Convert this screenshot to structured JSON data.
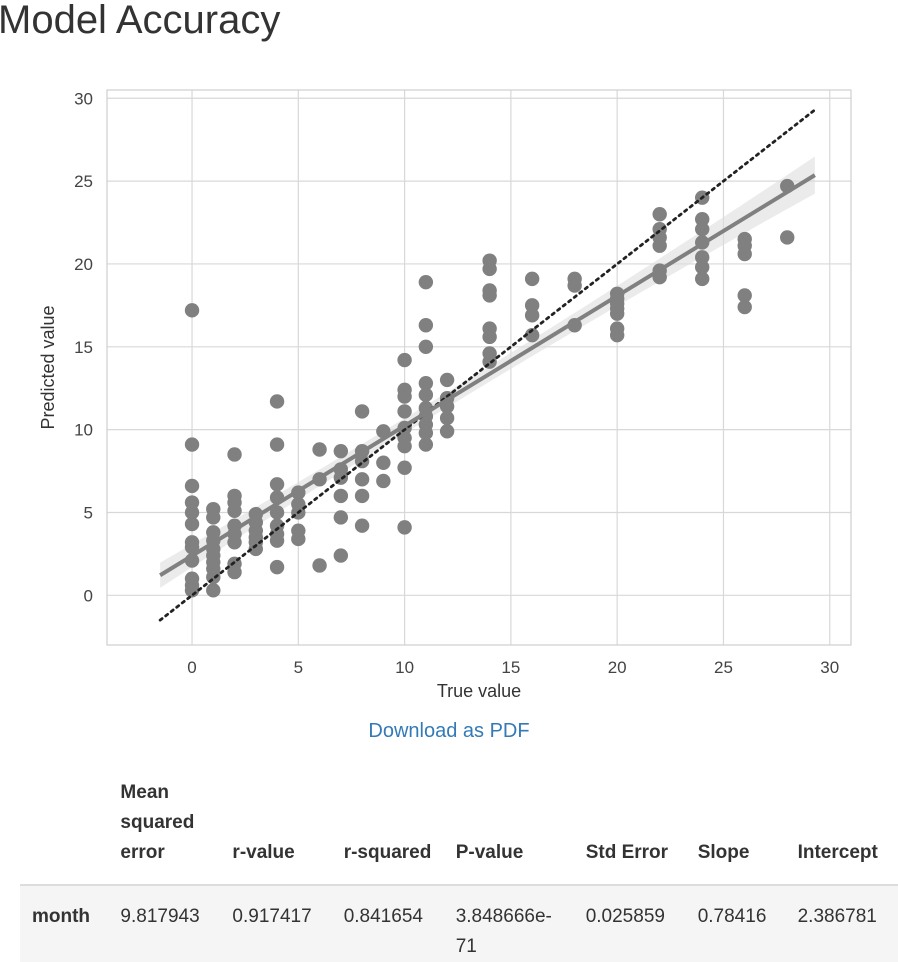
{
  "page": {
    "title": "Model Accuracy",
    "download_label": "Download as PDF"
  },
  "table": {
    "headers": [
      "",
      "Mean squared error",
      "r-value",
      "r-squared",
      "P-value",
      "Std Error",
      "Slope",
      "Intercept"
    ],
    "rows": [
      {
        "label": "month",
        "values": [
          "9.817943",
          "0.917417",
          "0.841654",
          "3.848666e-71",
          "0.025859",
          "0.78416",
          "2.386781"
        ]
      }
    ]
  },
  "colors": {
    "point": "#808080",
    "regression_line": "#808080",
    "identity_line": "#222222",
    "grid": "#d8d8d8",
    "link": "#337ab7"
  },
  "chart_data": {
    "type": "scatter",
    "title": "",
    "xlabel": "True value",
    "ylabel": "Predicted value",
    "xlim": [
      -4,
      31
    ],
    "ylim": [
      -3,
      30.5
    ],
    "xticks": [
      0,
      5,
      10,
      15,
      20,
      25,
      30
    ],
    "yticks": [
      0,
      5,
      10,
      15,
      20,
      25,
      30
    ],
    "grid": true,
    "regression": {
      "slope": 0.78416,
      "intercept": 2.386781,
      "x_range": [
        -1.5,
        29.3
      ],
      "ci_band": true
    },
    "identity_line": {
      "x_range": [
        -1.5,
        29.3
      ],
      "style": "dotted"
    },
    "points": [
      [
        0,
        17.2
      ],
      [
        0,
        9.1
      ],
      [
        0,
        6.6
      ],
      [
        0,
        5.6
      ],
      [
        0,
        5.0
      ],
      [
        0,
        4.3
      ],
      [
        0,
        3.2
      ],
      [
        0,
        2.9
      ],
      [
        0,
        2.1
      ],
      [
        0,
        1.0
      ],
      [
        0,
        0.6
      ],
      [
        0,
        0.3
      ],
      [
        1,
        5.2
      ],
      [
        1,
        4.7
      ],
      [
        1,
        3.8
      ],
      [
        1,
        3.3
      ],
      [
        1,
        2.8
      ],
      [
        1,
        2.4
      ],
      [
        1,
        2.0
      ],
      [
        1,
        1.6
      ],
      [
        1,
        1.1
      ],
      [
        1,
        0.3
      ],
      [
        2,
        8.5
      ],
      [
        2,
        6.0
      ],
      [
        2,
        5.6
      ],
      [
        2,
        5.1
      ],
      [
        2,
        4.2
      ],
      [
        2,
        3.7
      ],
      [
        2,
        3.2
      ],
      [
        2,
        1.9
      ],
      [
        2,
        1.4
      ],
      [
        3,
        4.9
      ],
      [
        3,
        4.4
      ],
      [
        3,
        3.9
      ],
      [
        3,
        3.5
      ],
      [
        3,
        3.2
      ],
      [
        3,
        2.8
      ],
      [
        4,
        11.7
      ],
      [
        4,
        9.1
      ],
      [
        4,
        6.7
      ],
      [
        4,
        5.9
      ],
      [
        4,
        5.0
      ],
      [
        4,
        4.2
      ],
      [
        4,
        3.7
      ],
      [
        4,
        3.3
      ],
      [
        4,
        1.7
      ],
      [
        5,
        6.2
      ],
      [
        5,
        5.5
      ],
      [
        5,
        5.0
      ],
      [
        5,
        3.9
      ],
      [
        5,
        3.4
      ],
      [
        6,
        8.8
      ],
      [
        6,
        7.0
      ],
      [
        6,
        1.8
      ],
      [
        7,
        8.7
      ],
      [
        7,
        7.6
      ],
      [
        7,
        7.1
      ],
      [
        7,
        6.0
      ],
      [
        7,
        4.7
      ],
      [
        7,
        2.4
      ],
      [
        8,
        11.1
      ],
      [
        8,
        8.7
      ],
      [
        8,
        8.1
      ],
      [
        8,
        7.0
      ],
      [
        8,
        6.0
      ],
      [
        8,
        4.2
      ],
      [
        9,
        9.9
      ],
      [
        9,
        8.0
      ],
      [
        9,
        6.9
      ],
      [
        10,
        14.2
      ],
      [
        10,
        12.4
      ],
      [
        10,
        12.0
      ],
      [
        10,
        11.1
      ],
      [
        10,
        10.1
      ],
      [
        10,
        9.5
      ],
      [
        10,
        9.0
      ],
      [
        10,
        7.7
      ],
      [
        10,
        4.1
      ],
      [
        11,
        18.9
      ],
      [
        11,
        16.3
      ],
      [
        11,
        15.0
      ],
      [
        11,
        12.8
      ],
      [
        11,
        12.1
      ],
      [
        11,
        11.3
      ],
      [
        11,
        10.8
      ],
      [
        11,
        10.3
      ],
      [
        11,
        9.8
      ],
      [
        11,
        9.1
      ],
      [
        12,
        13.0
      ],
      [
        12,
        11.9
      ],
      [
        12,
        11.4
      ],
      [
        12,
        10.7
      ],
      [
        12,
        9.9
      ],
      [
        14,
        20.2
      ],
      [
        14,
        19.7
      ],
      [
        14,
        18.4
      ],
      [
        14,
        18.1
      ],
      [
        14,
        16.1
      ],
      [
        14,
        15.6
      ],
      [
        14,
        14.6
      ],
      [
        14,
        14.1
      ],
      [
        16,
        19.1
      ],
      [
        16,
        17.5
      ],
      [
        16,
        16.9
      ],
      [
        16,
        15.7
      ],
      [
        18,
        19.1
      ],
      [
        18,
        18.7
      ],
      [
        18,
        16.3
      ],
      [
        20,
        18.2
      ],
      [
        20,
        17.9
      ],
      [
        20,
        17.6
      ],
      [
        20,
        17.3
      ],
      [
        20,
        17.0
      ],
      [
        20,
        16.1
      ],
      [
        20,
        15.7
      ],
      [
        22,
        23.0
      ],
      [
        22,
        22.1
      ],
      [
        22,
        21.6
      ],
      [
        22,
        21.1
      ],
      [
        22,
        19.6
      ],
      [
        22,
        19.2
      ],
      [
        24,
        24.0
      ],
      [
        24,
        22.7
      ],
      [
        24,
        22.1
      ],
      [
        24,
        21.3
      ],
      [
        24,
        20.4
      ],
      [
        24,
        19.8
      ],
      [
        24,
        19.1
      ],
      [
        26,
        21.5
      ],
      [
        26,
        21.1
      ],
      [
        26,
        20.6
      ],
      [
        26,
        18.1
      ],
      [
        26,
        17.4
      ],
      [
        28,
        24.7
      ],
      [
        28,
        21.6
      ]
    ]
  }
}
